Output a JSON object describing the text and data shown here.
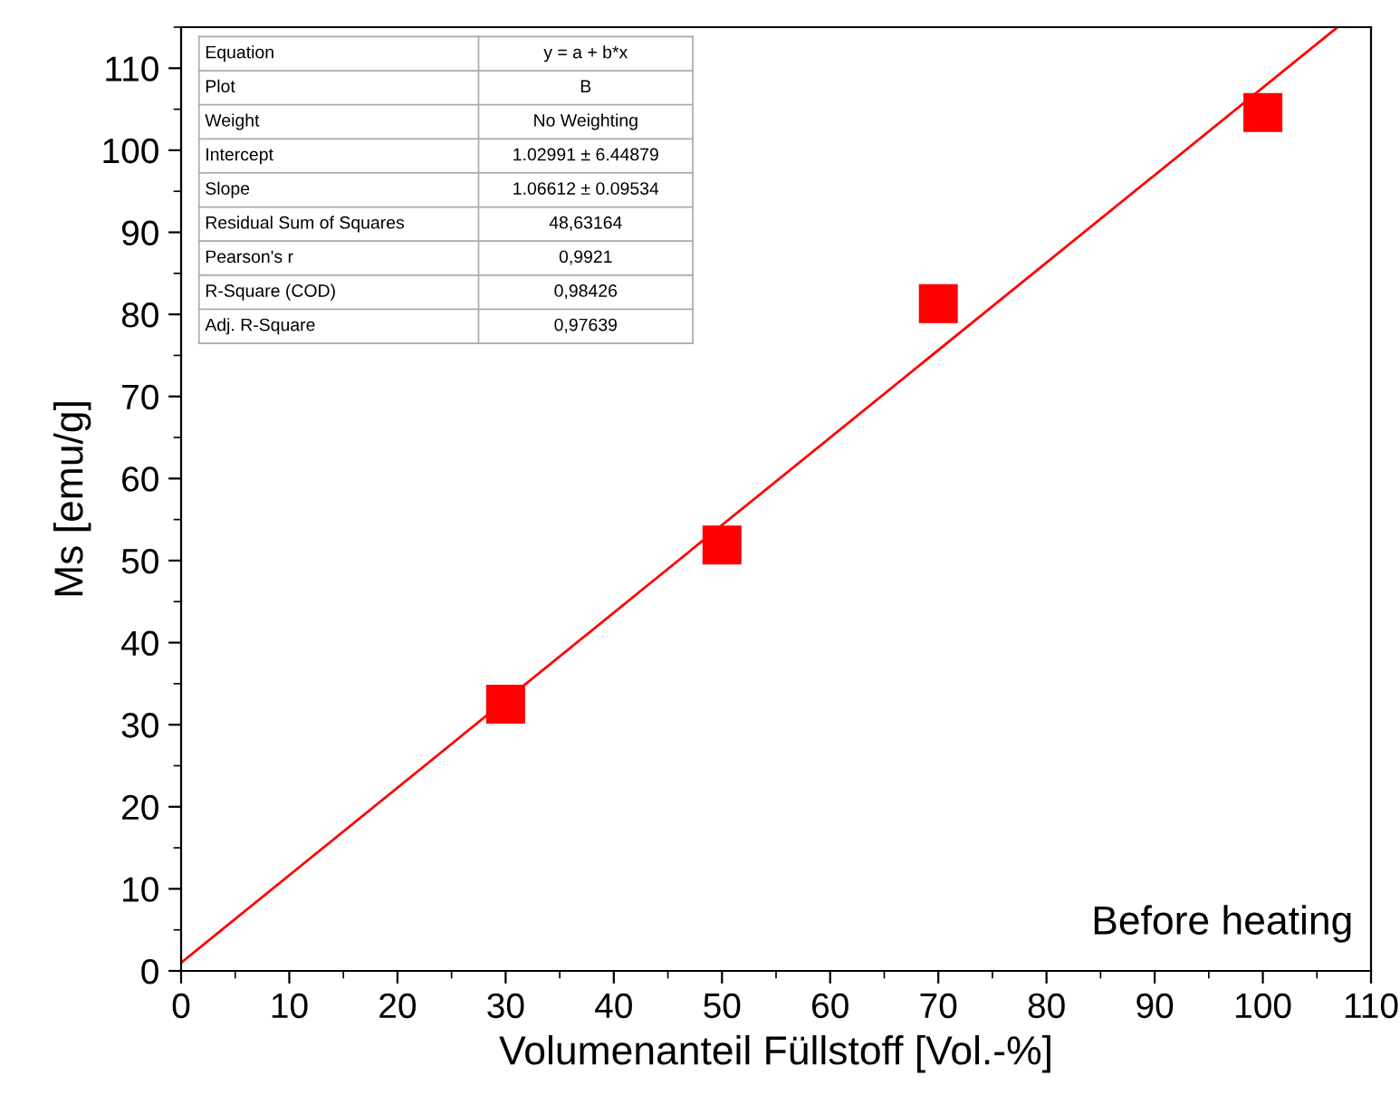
{
  "chart_data": {
    "type": "scatter",
    "xlabel": "Volumenanteil Füllstoff [Vol.-%]",
    "ylabel": "Ms [emu/g]",
    "x": [
      30,
      50,
      70,
      100
    ],
    "series": [
      {
        "color": "#ff0000",
        "marker": "square",
        "values": [
          32.5,
          51.9,
          81.3,
          104.6
        ]
      },
      {
        "type": "line",
        "color": "#ff0000",
        "x": [
          0,
          106.9
        ],
        "values": [
          1.0,
          115
        ],
        "line_style": "solid"
      }
    ],
    "xlim": [
      0,
      110
    ],
    "xticks": [
      0,
      10,
      20,
      30,
      40,
      50,
      60,
      70,
      80,
      90,
      100,
      110
    ],
    "ylim": [
      0,
      115
    ],
    "yticks": [
      0,
      10,
      20,
      30,
      40,
      50,
      60,
      70,
      80,
      90,
      100,
      110
    ],
    "grid": false,
    "legend": false,
    "annotations": [
      "Equation",
      "y = a + b*x",
      "Plot",
      "B",
      "Weight",
      "No Weighting",
      "Intercept",
      "1.02991 ± 6.44879",
      "Slope",
      "1.06612 ± 0.09534",
      "Residual Sum of Squares",
      "48,63164",
      "Pearson's r",
      "0,9921",
      "R-Square (COD)",
      "0,98426",
      "Adj. R-Square",
      "0,97639",
      "Before heating"
    ]
  }
}
